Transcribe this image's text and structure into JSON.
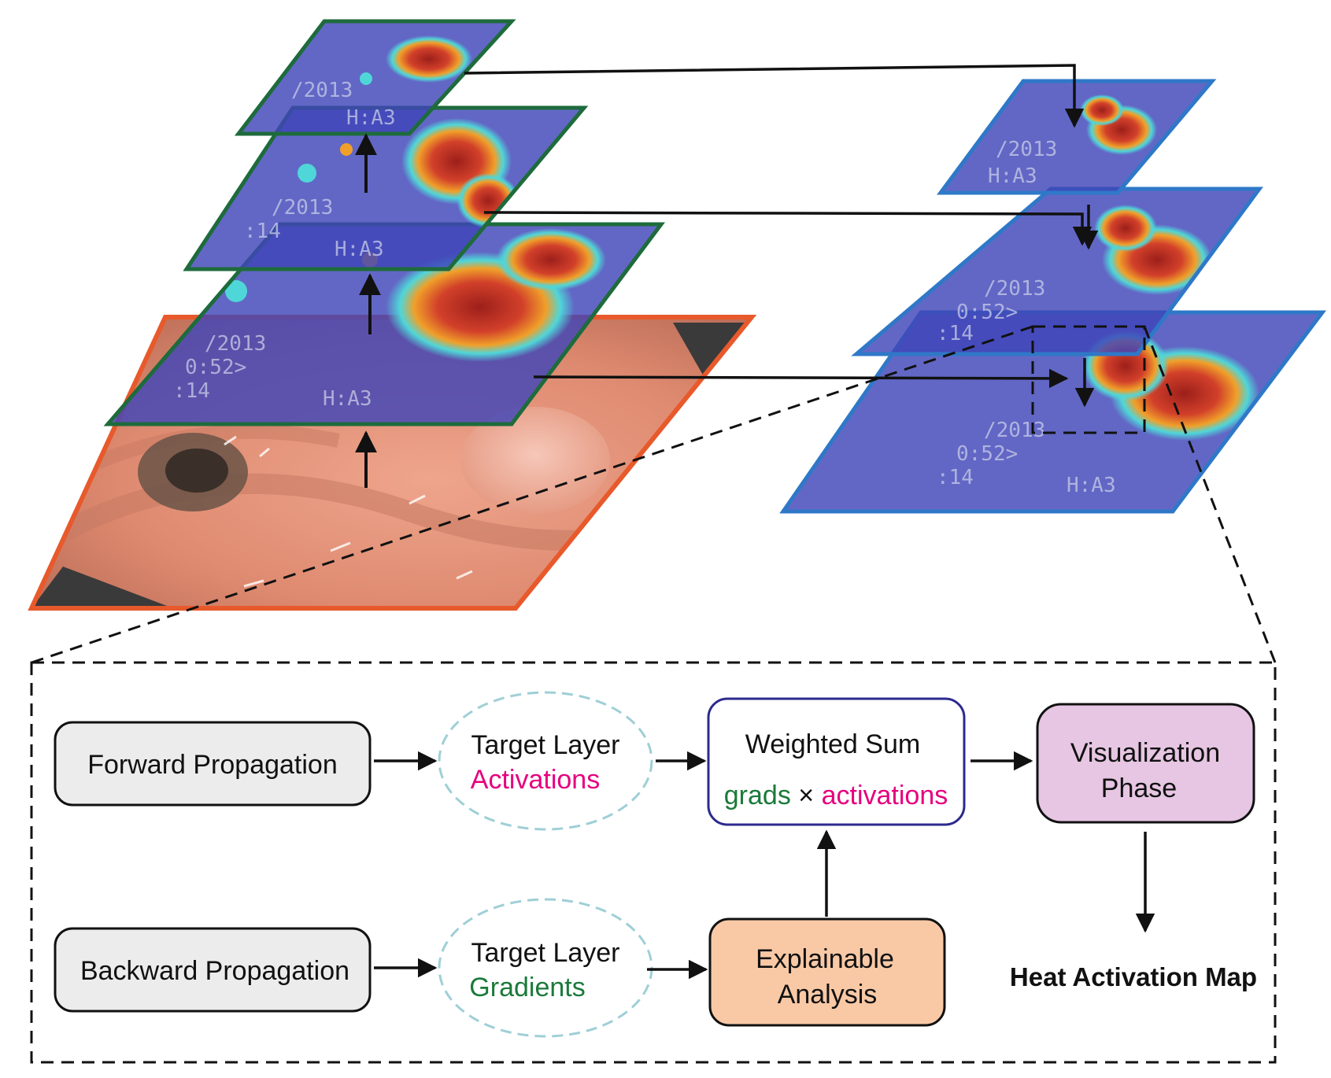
{
  "colors": {
    "endoscopy_border": "#e8592b",
    "forward_layer_border": "#1e6b3c",
    "heatmap_layer_border": "#2f78c8",
    "activation_text": "#e6007e",
    "gradient_text": "#1a7a3a",
    "layer_fill": "#3f45b8",
    "heat_red": "#c8352a",
    "heat_orange": "#f09a2a",
    "heat_cyan": "#45d4d9",
    "visualization_fill": "#e6c6e2",
    "analysis_fill": "#f9c9a6",
    "process_fill": "#ececec",
    "weighted_sum_border": "#2c2a8e",
    "target_ellipse_border": "#9fcfd6"
  },
  "overlay_text": {
    "date_fragment": "/2013",
    "time_fragment": "0:52>",
    "index_fragment": ":14",
    "tag_fragment": "H:A3"
  },
  "flow": {
    "forward_propagation": "Forward Propagation",
    "backward_propagation": "Backward Propagation",
    "target_layer_top": "Target Layer",
    "activations": "Activations",
    "target_layer_bottom": "Target Layer",
    "gradients": "Gradients",
    "weighted_sum": "Weighted Sum",
    "grads": "grads",
    "times": "×",
    "activations_term": "activations",
    "visualization_line1": "Visualization",
    "visualization_line2": "Phase",
    "explainable_line1": "Explainable",
    "explainable_line2": "Analysis",
    "heat_activation_map": "Heat Activation Map"
  }
}
